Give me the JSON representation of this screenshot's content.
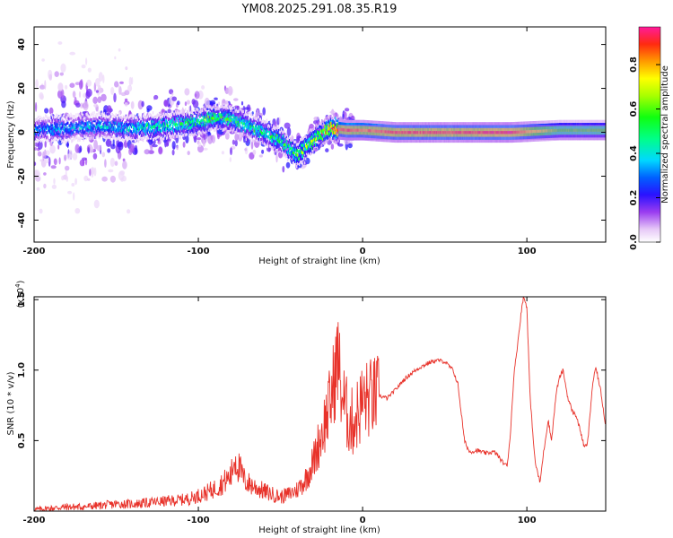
{
  "title": "YM08.2025.291.08.35.R19",
  "chart_data": [
    {
      "type": "heatmap",
      "name": "spectrogram",
      "xlabel": "Height of straight line (km)",
      "ylabel": "Frequency (Hz)",
      "xlim": [
        -200,
        148
      ],
      "ylim": [
        -50,
        48
      ],
      "xticks": [
        -200,
        -100,
        0,
        100
      ],
      "yticks": [
        -40,
        -20,
        0,
        20,
        40
      ],
      "colorbar": {
        "label": "Normalized spectral amplitude",
        "range": [
          0.0,
          0.97
        ],
        "ticks": [
          0.0,
          0.2,
          0.4,
          0.6,
          0.8
        ]
      },
      "ridge": {
        "description_points_x_km": [
          -200,
          -180,
          -160,
          -140,
          -120,
          -100,
          -90,
          -80,
          -70,
          -60,
          -50,
          -40,
          -30,
          -20,
          -10,
          0,
          20,
          60,
          90,
          120,
          148
        ],
        "center_hz": [
          1,
          2,
          3,
          2,
          3,
          5,
          7,
          6,
          3,
          0,
          -4,
          -10,
          -3,
          2,
          1,
          1,
          0,
          0,
          0,
          1,
          1
        ],
        "peak_amplitude": [
          0.3,
          0.35,
          0.35,
          0.4,
          0.45,
          0.5,
          0.55,
          0.5,
          0.5,
          0.45,
          0.5,
          0.55,
          0.6,
          0.8,
          0.9,
          0.85,
          0.9,
          0.9,
          0.95,
          0.6,
          0.6
        ]
      }
    },
    {
      "type": "line",
      "name": "snr",
      "xlabel": "Height of straight line (km)",
      "ylabel": "SNR (10 * v/v)",
      "yscale_label": "(x10",
      "yscale_exp": "4",
      "yscale_suffix": ")",
      "xlim": [
        -200,
        148
      ],
      "ylim": [
        0,
        1.52
      ],
      "xticks": [
        -200,
        -100,
        0,
        100
      ],
      "yticks": [
        0.5,
        1.0,
        1.5
      ],
      "ytick_labels": [
        "0.5",
        "1.0",
        "1.5"
      ],
      "color": "#e8322a",
      "series": [
        {
          "name": "SNR",
          "x": [
            -200,
            -190,
            -180,
            -170,
            -160,
            -150,
            -140,
            -130,
            -120,
            -110,
            -105,
            -100,
            -95,
            -90,
            -85,
            -80,
            -78,
            -75,
            -72,
            -70,
            -65,
            -60,
            -55,
            -50,
            -45,
            -40,
            -35,
            -30,
            -25,
            -20,
            -17,
            -15,
            -13,
            -10,
            -7,
            -5,
            -2,
            0,
            5,
            10,
            15,
            20,
            25,
            30,
            35,
            40,
            45,
            50,
            55,
            58,
            60,
            62,
            65,
            70,
            75,
            80,
            82,
            85,
            88,
            90,
            92,
            95,
            97,
            98,
            100,
            102,
            105,
            108,
            110,
            113,
            115,
            118,
            120,
            122,
            125,
            128,
            130,
            133,
            135,
            137,
            140,
            142,
            145,
            148
          ],
          "y": [
            0.01,
            0.02,
            0.03,
            0.03,
            0.04,
            0.05,
            0.05,
            0.06,
            0.07,
            0.08,
            0.09,
            0.11,
            0.13,
            0.16,
            0.2,
            0.25,
            0.38,
            0.3,
            0.22,
            0.2,
            0.17,
            0.14,
            0.12,
            0.1,
            0.12,
            0.15,
            0.22,
            0.35,
            0.55,
            0.75,
            0.95,
            1.1,
            0.85,
            0.7,
            0.62,
            0.65,
            0.72,
            0.78,
            0.8,
            0.82,
            0.8,
            0.86,
            0.93,
            0.98,
            1.02,
            1.05,
            1.07,
            1.06,
            1.0,
            0.9,
            0.7,
            0.5,
            0.42,
            0.43,
            0.41,
            0.42,
            0.4,
            0.35,
            0.32,
            0.55,
            0.95,
            1.25,
            1.45,
            1.52,
            1.45,
            0.8,
            0.35,
            0.2,
            0.4,
            0.65,
            0.5,
            0.85,
            0.95,
            1.0,
            0.8,
            0.7,
            0.68,
            0.55,
            0.45,
            0.48,
            0.9,
            1.02,
            0.85,
            0.6
          ]
        }
      ]
    }
  ]
}
